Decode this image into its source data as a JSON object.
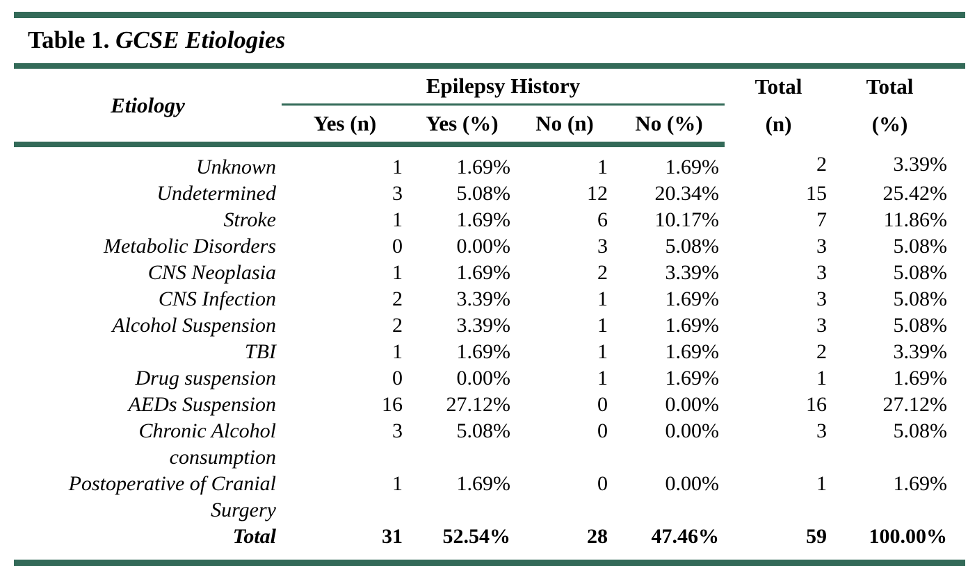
{
  "accent_color": "#336a58",
  "title": {
    "prefix": "Table 1.",
    "main": " GCSE Etiologies"
  },
  "table": {
    "header": {
      "etiology": "Etiology",
      "group": "Epilepsy History",
      "sub": {
        "yes_n": "Yes (n)",
        "yes_pct": "Yes (%)",
        "no_n": "No (n)",
        "no_pct": "No (%)"
      },
      "total_n_line1": "Total",
      "total_n_line2": "(n)",
      "total_pct_line1": "Total",
      "total_pct_line2": "(%)"
    },
    "rows": [
      {
        "etiology": "Unknown",
        "values": [
          "1",
          "1.69%",
          "1",
          "1.69%",
          "2",
          "3.39%"
        ]
      },
      {
        "etiology": "Undetermined",
        "values": [
          "3",
          "5.08%",
          "12",
          "20.34%",
          "15",
          "25.42%"
        ]
      },
      {
        "etiology": "Stroke",
        "values": [
          "1",
          "1.69%",
          "6",
          "10.17%",
          "7",
          "11.86%"
        ]
      },
      {
        "etiology": "Metabolic Disorders",
        "values": [
          "0",
          "0.00%",
          "3",
          "5.08%",
          "3",
          "5.08%"
        ]
      },
      {
        "etiology": "CNS Neoplasia",
        "values": [
          "1",
          "1.69%",
          "2",
          "3.39%",
          "3",
          "5.08%"
        ]
      },
      {
        "etiology": "CNS Infection",
        "values": [
          "2",
          "3.39%",
          "1",
          "1.69%",
          "3",
          "5.08%"
        ]
      },
      {
        "etiology": "Alcohol Suspension",
        "values": [
          "2",
          "3.39%",
          "1",
          "1.69%",
          "3",
          "5.08%"
        ]
      },
      {
        "etiology": "TBI",
        "values": [
          "1",
          "1.69%",
          "1",
          "1.69%",
          "2",
          "3.39%"
        ]
      },
      {
        "etiology": "Drug suspension",
        "values": [
          "0",
          "0.00%",
          "1",
          "1.69%",
          "1",
          "1.69%"
        ]
      },
      {
        "etiology": "AEDs Suspension",
        "values": [
          "16",
          "27.12%",
          "0",
          "0.00%",
          "16",
          "27.12%"
        ]
      },
      {
        "etiology": "Chronic Alcohol\nconsumption",
        "values": [
          "3",
          "5.08%",
          "0",
          "0.00%",
          "3",
          "5.08%"
        ]
      },
      {
        "etiology": "Postoperative of Cranial\nSurgery",
        "values": [
          "1",
          "1.69%",
          "0",
          "0.00%",
          "1",
          "1.69%"
        ]
      }
    ],
    "total_row": {
      "label": "Total",
      "values": [
        "31",
        "52.54%",
        "28",
        "47.46%",
        "59",
        "100.00%"
      ]
    }
  },
  "chart_data": {
    "type": "table",
    "title": "Table 1. GCSE Etiologies",
    "columns": [
      "Etiology",
      "Yes (n)",
      "Yes (%)",
      "No (n)",
      "No (%)",
      "Total (n)",
      "Total (%)"
    ],
    "column_group": {
      "label": "Epilepsy History",
      "spans": [
        "Yes (n)",
        "Yes (%)",
        "No (n)",
        "No (%)"
      ]
    },
    "rows": [
      [
        "Unknown",
        1,
        "1.69%",
        1,
        "1.69%",
        2,
        "3.39%"
      ],
      [
        "Undetermined",
        3,
        "5.08%",
        12,
        "20.34%",
        15,
        "25.42%"
      ],
      [
        "Stroke",
        1,
        "1.69%",
        6,
        "10.17%",
        7,
        "11.86%"
      ],
      [
        "Metabolic Disorders",
        0,
        "0.00%",
        3,
        "5.08%",
        3,
        "5.08%"
      ],
      [
        "CNS Neoplasia",
        1,
        "1.69%",
        2,
        "3.39%",
        3,
        "5.08%"
      ],
      [
        "CNS Infection",
        2,
        "3.39%",
        1,
        "1.69%",
        3,
        "5.08%"
      ],
      [
        "Alcohol Suspension",
        2,
        "3.39%",
        1,
        "1.69%",
        3,
        "5.08%"
      ],
      [
        "TBI",
        1,
        "1.69%",
        1,
        "1.69%",
        2,
        "3.39%"
      ],
      [
        "Drug suspension",
        0,
        "0.00%",
        1,
        "1.69%",
        1,
        "1.69%"
      ],
      [
        "AEDs Suspension",
        16,
        "27.12%",
        0,
        "0.00%",
        16,
        "27.12%"
      ],
      [
        "Chronic Alcohol consumption",
        3,
        "5.08%",
        0,
        "0.00%",
        3,
        "5.08%"
      ],
      [
        "Postoperative of Cranial Surgery",
        1,
        "1.69%",
        0,
        "0.00%",
        1,
        "1.69%"
      ],
      [
        "Total",
        31,
        "52.54%",
        28,
        "47.46%",
        59,
        "100.00%"
      ]
    ]
  }
}
